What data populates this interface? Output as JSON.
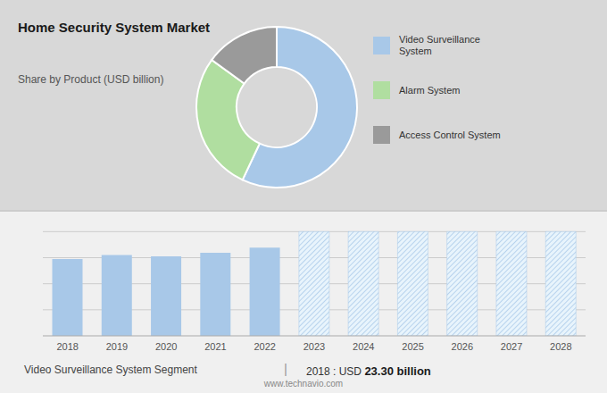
{
  "chart_data": [
    {
      "type": "pie",
      "title": "Home Security System Market",
      "subtitle": "Share by Product (USD billion)",
      "categories": [
        "Video Surveillance\nSystem",
        "Alarm System",
        "Access Control System"
      ],
      "values": [
        57,
        28,
        15
      ],
      "colors": [
        "#a8c8e8",
        "#b0dea0",
        "#9a9a9a"
      ],
      "legend": "right"
    },
    {
      "type": "bar",
      "categories": [
        "2018",
        "2019",
        "2020",
        "2021",
        "2022",
        "2023",
        "2024",
        "2025",
        "2026",
        "2027",
        "2028"
      ],
      "values": [
        23.3,
        24.5,
        24.1,
        25.2,
        26.8,
        31.624,
        31.624,
        31.624,
        31.624,
        31.624,
        31.624
      ],
      "colors": [
        "#a8c8e8",
        "#a8c8e8",
        "#a8c8e8",
        "#a8c8e8",
        "#a8c8e8",
        "#e8f4fc",
        "#e8f4fc",
        "#e8f4fc",
        "#e8f4fc",
        "#e8f4fc",
        "#e8f4fc"
      ],
      "ylim": [
        0,
        34.15392
      ],
      "yticks": [
        7.906,
        15.812,
        23.718,
        31.624
      ],
      "grid": true,
      "tick_labels": "x",
      "annotations": [
        "Video Surveillance System Segment",
        "|",
        "2018 : USD ",
        "23.30 billion",
        "www.technavio.com"
      ]
    }
  ]
}
